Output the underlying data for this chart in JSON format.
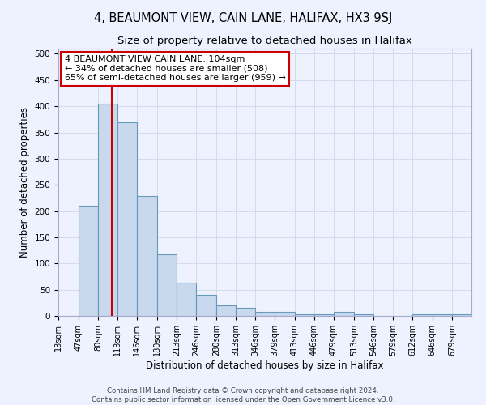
{
  "title": "4, BEAUMONT VIEW, CAIN LANE, HALIFAX, HX3 9SJ",
  "subtitle": "Size of property relative to detached houses in Halifax",
  "xlabel": "Distribution of detached houses by size in Halifax",
  "ylabel": "Number of detached properties",
  "bin_edges": [
    13,
    47,
    80,
    113,
    146,
    180,
    213,
    246,
    280,
    313,
    346,
    379,
    413,
    446,
    479,
    513,
    546,
    579,
    612,
    646,
    679,
    712
  ],
  "bar_heights": [
    0,
    210,
    405,
    370,
    228,
    118,
    63,
    40,
    20,
    15,
    7,
    7,
    3,
    3,
    7,
    3,
    0,
    0,
    3,
    3,
    3
  ],
  "bar_color": "#c8d8ed",
  "bar_edge_color": "#6699bb",
  "vline_x": 104,
  "vline_color": "#cc0000",
  "annotation_text_line1": "4 BEAUMONT VIEW CAIN LANE: 104sqm",
  "annotation_text_line2": "← 34% of detached houses are smaller (508)",
  "annotation_text_line3": "65% of semi-detached houses are larger (959) →",
  "ylim": [
    0,
    510
  ],
  "yticks": [
    0,
    50,
    100,
    150,
    200,
    250,
    300,
    350,
    400,
    450,
    500
  ],
  "background_color": "#eef2ff",
  "grid_color": "#d0d8e8",
  "title_fontsize": 10.5,
  "subtitle_fontsize": 9.5,
  "xlabel_fontsize": 8.5,
  "ylabel_fontsize": 8.5,
  "tick_label_fontsize": 7,
  "footer_line1": "Contains HM Land Registry data © Crown copyright and database right 2024.",
  "footer_line2": "Contains public sector information licensed under the Open Government Licence v3.0."
}
